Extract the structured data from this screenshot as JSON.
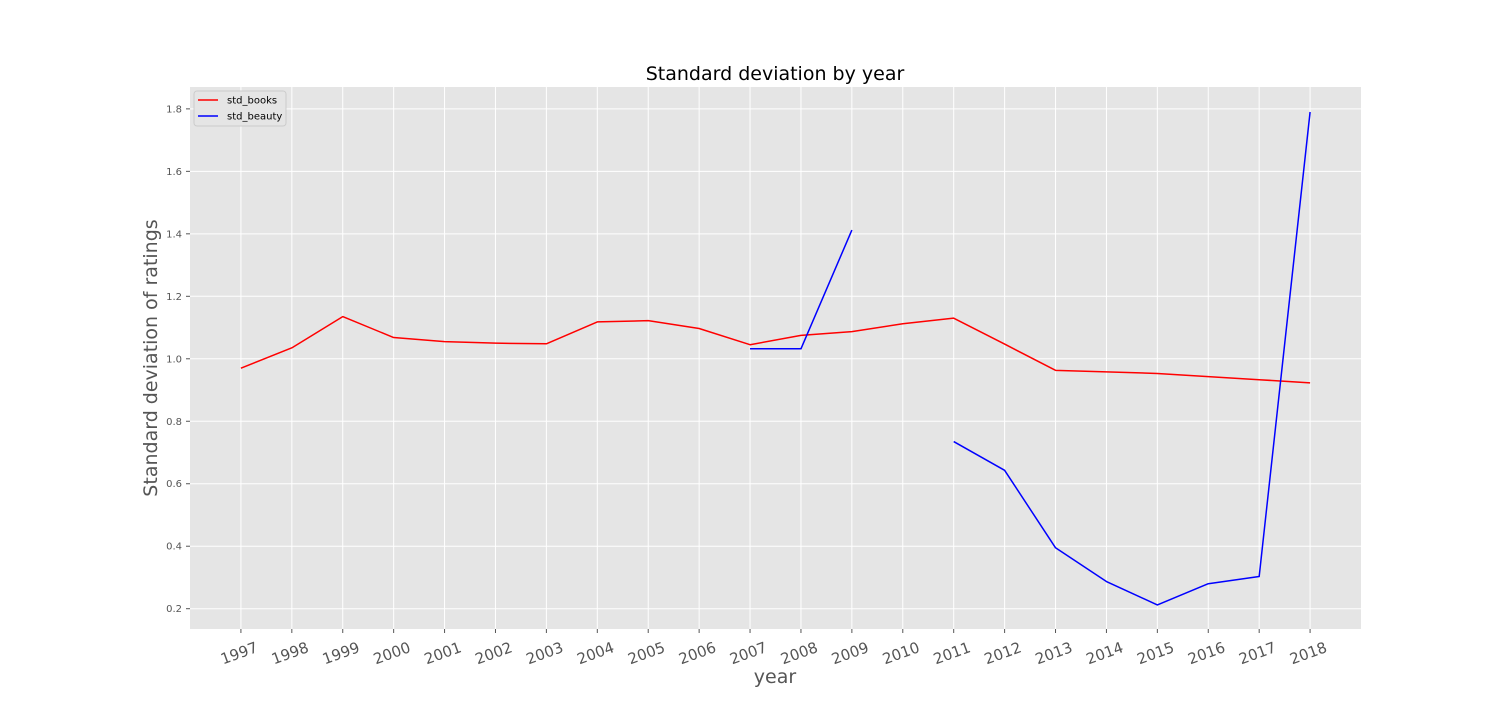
{
  "chart_data": {
    "type": "line",
    "title": "Standard deviation by year",
    "xlabel": "year",
    "ylabel": "Standard deviation of ratings",
    "x": [
      1997,
      1998,
      1999,
      2000,
      2001,
      2002,
      2003,
      2004,
      2005,
      2006,
      2007,
      2008,
      2009,
      2010,
      2011,
      2012,
      2013,
      2014,
      2015,
      2016,
      2017,
      2018
    ],
    "x_tick_labels": [
      "1997",
      "1998",
      "1999",
      "2000",
      "2001",
      "2002",
      "2003",
      "2004",
      "2005",
      "2006",
      "2007",
      "2008",
      "2009",
      "2010",
      "2011",
      "2012",
      "2013",
      "2014",
      "2015",
      "2016",
      "2017",
      "2018"
    ],
    "xlim": [
      1996,
      2019
    ],
    "ylim": [
      0.135,
      1.87
    ],
    "y_ticks": [
      0.2,
      0.4,
      0.6,
      0.8,
      1.0,
      1.2,
      1.4,
      1.6,
      1.8
    ],
    "y_tick_labels": [
      "0.2",
      "0.4",
      "0.6",
      "0.8",
      "1.0",
      "1.2",
      "1.4",
      "1.6",
      "1.8"
    ],
    "grid": true,
    "legend_position": "top-left",
    "background_color": "#e5e5e5",
    "grid_color": "#ffffff",
    "series": [
      {
        "name": "std_books",
        "color": "#ff0000",
        "values": [
          0.97,
          1.035,
          1.135,
          1.068,
          1.055,
          1.05,
          1.048,
          1.118,
          1.122,
          1.097,
          1.045,
          1.075,
          1.087,
          1.112,
          1.13,
          1.047,
          0.963,
          0.958,
          0.953,
          0.943,
          0.933,
          0.923
        ]
      },
      {
        "name": "std_beauty",
        "color": "#0000ff",
        "values": [
          null,
          null,
          null,
          null,
          null,
          null,
          null,
          null,
          null,
          null,
          1.032,
          1.032,
          1.412,
          null,
          0.735,
          0.643,
          0.395,
          0.287,
          0.212,
          0.28,
          0.303,
          1.79
        ]
      }
    ]
  }
}
